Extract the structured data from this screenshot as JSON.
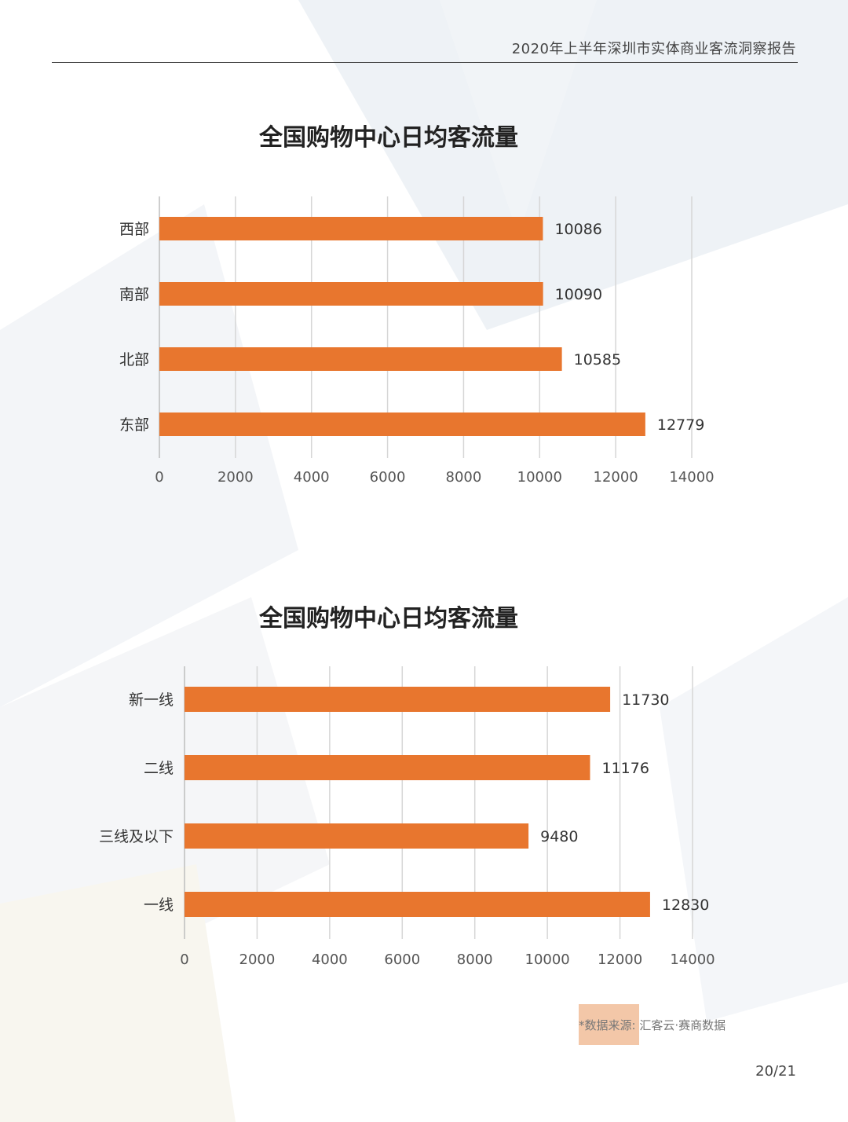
{
  "header": {
    "report_title": "2020年上半年深圳市实体商业客流洞察报告"
  },
  "colors": {
    "bar": "#e8762e",
    "grid": "#d6d6d6",
    "axis_text": "#555555",
    "label_text": "#333333"
  },
  "chart_data": [
    {
      "type": "bar",
      "orientation": "horizontal",
      "title": "全国购物中心日均客流量",
      "categories": [
        "西部",
        "南部",
        "北部",
        "东部"
      ],
      "values": [
        10086,
        10090,
        10585,
        12779
      ],
      "data_labels": [
        "10086",
        "10090",
        "10585",
        "12779"
      ],
      "xlim": [
        0,
        14000
      ],
      "x_ticks": [
        0,
        2000,
        4000,
        6000,
        8000,
        10000,
        12000,
        14000
      ],
      "x_tick_labels": [
        "0",
        "2000",
        "4000",
        "6000",
        "8000",
        "10000",
        "12000",
        "14000"
      ],
      "grid": true,
      "legend": "none"
    },
    {
      "type": "bar",
      "orientation": "horizontal",
      "title": "全国购物中心日均客流量",
      "categories": [
        "新一线",
        "二线",
        "三线及以下",
        "一线"
      ],
      "values": [
        11730,
        11176,
        9480,
        12830
      ],
      "data_labels": [
        "11730",
        "11176",
        "9480",
        "12830"
      ],
      "xlim": [
        0,
        14000
      ],
      "x_ticks": [
        0,
        2000,
        4000,
        6000,
        8000,
        10000,
        12000,
        14000
      ],
      "x_tick_labels": [
        "0",
        "2000",
        "4000",
        "6000",
        "8000",
        "10000",
        "12000",
        "14000"
      ],
      "grid": true,
      "legend": "none"
    }
  ],
  "footer": {
    "source_note": "*数据来源: 汇客云·赛商数据",
    "page_number": "20/21"
  }
}
